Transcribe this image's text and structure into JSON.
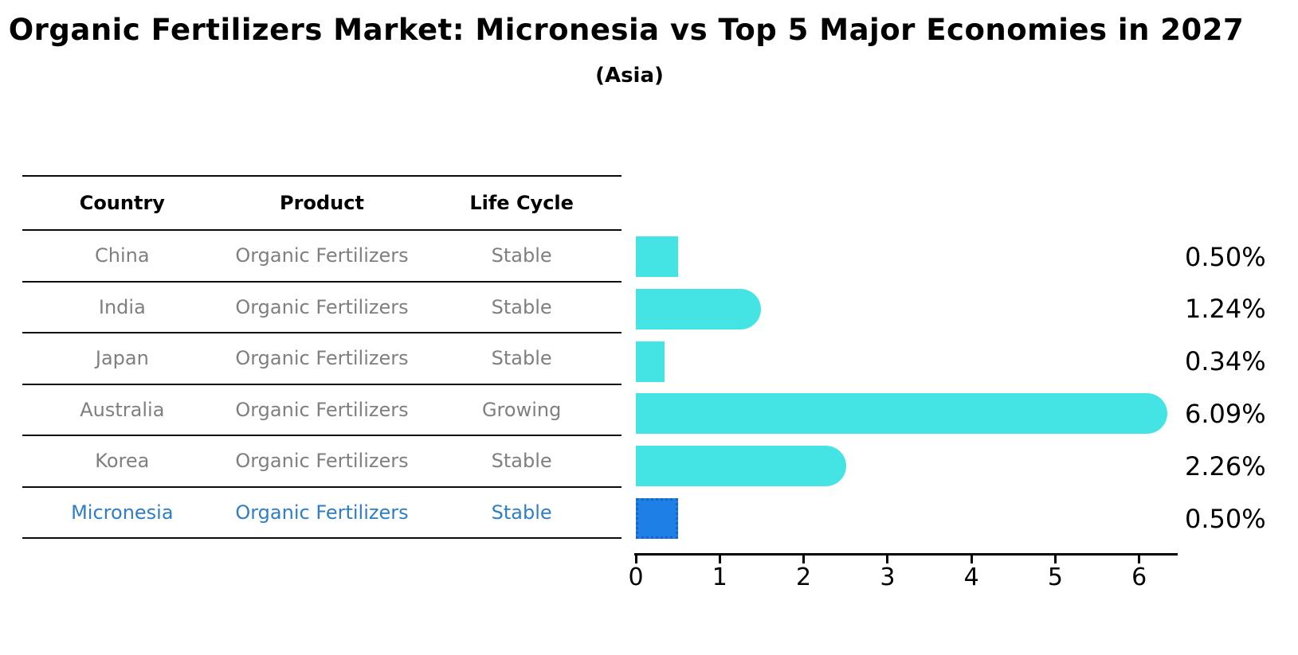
{
  "title": "Organic Fertilizers Market: Micronesia vs Top 5 Major Economies in 2027",
  "subtitle": "(Asia)",
  "table": {
    "headers": [
      "Country",
      "Product",
      "Life Cycle"
    ],
    "rows": [
      {
        "country": "China",
        "product": "Organic Fertilizers",
        "life_cycle": "Stable",
        "highlight": false
      },
      {
        "country": "India",
        "product": "Organic Fertilizers",
        "life_cycle": "Stable",
        "highlight": false
      },
      {
        "country": "Japan",
        "product": "Organic Fertilizers",
        "life_cycle": "Stable",
        "highlight": false
      },
      {
        "country": "Australia",
        "product": "Organic Fertilizers",
        "life_cycle": "Growing",
        "highlight": false
      },
      {
        "country": "Korea",
        "product": "Organic Fertilizers",
        "life_cycle": "Stable",
        "highlight": false
      },
      {
        "country": "Micronesia",
        "product": "Organic Fertilizers",
        "life_cycle": "Stable",
        "highlight": true
      }
    ]
  },
  "chart_data": {
    "type": "bar",
    "orientation": "horizontal",
    "title": "Organic Fertilizers Market: Micronesia vs Top 5 Major Economies in 2027",
    "subtitle": "(Asia)",
    "categories": [
      "China",
      "India",
      "Japan",
      "Australia",
      "Korea",
      "Micronesia"
    ],
    "values": [
      0.5,
      1.24,
      0.34,
      6.09,
      2.26,
      0.5
    ],
    "value_labels": [
      "0.50%",
      "1.24%",
      "0.34%",
      "6.09%",
      "2.26%",
      "0.50%"
    ],
    "xlim": [
      0,
      6.43
    ],
    "xticks": [
      "0",
      "1",
      "2",
      "3",
      "4",
      "5",
      "6"
    ],
    "grid": false,
    "legend": "none",
    "highlight_index": 5
  },
  "colors": {
    "bar": "#45e4e4",
    "highlight_bar": "#1e80e6",
    "highlight_bar_border": "#1465c8",
    "row_text": "#7f7f7f",
    "highlight_text": "#2e7ec6",
    "header_text": "#000000",
    "axis": "#000000"
  }
}
